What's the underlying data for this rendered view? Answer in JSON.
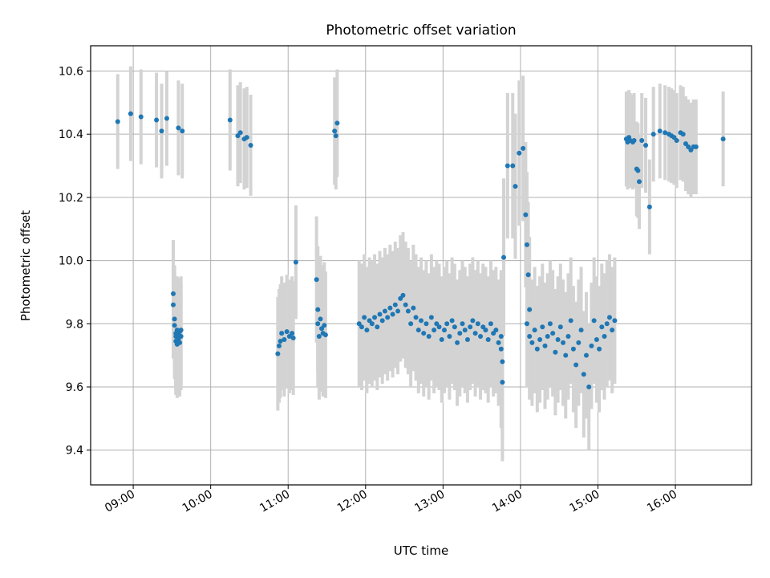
{
  "chart_data": {
    "type": "scatter",
    "title": "Photometric offset variation",
    "xlabel": "UTC time",
    "ylabel": "Photometric offset",
    "xlim": [
      "08:27",
      "16:59"
    ],
    "ylim": [
      9.29,
      10.68
    ],
    "x_ticks": [
      "09:00",
      "10:00",
      "11:00",
      "12:00",
      "13:00",
      "14:00",
      "15:00",
      "16:00"
    ],
    "y_ticks": [
      "9.4",
      "9.6",
      "9.8",
      "10.0",
      "10.2",
      "10.4",
      "10.6"
    ],
    "grid": true,
    "colors": {
      "points": "#1f77b4",
      "errorbars": "#d3d3d3",
      "grid": "#b0b0b0"
    },
    "groups": [
      {
        "t": [
          "08:48",
          "08:58",
          "09:06",
          "09:18",
          "09:22",
          "09:26",
          "09:35",
          "09:38"
        ],
        "y": [
          10.44,
          10.465,
          10.455,
          10.445,
          10.41,
          10.45,
          10.42,
          10.41
        ],
        "err": 0.15
      },
      {
        "t": [
          "09:31",
          "09:31",
          "09:32",
          "09:32",
          "09:33",
          "09:33",
          "09:33",
          "09:34",
          "09:34",
          "09:35",
          "09:35",
          "09:36",
          "09:36",
          "09:37",
          "09:37"
        ],
        "y": [
          9.895,
          9.86,
          9.815,
          9.795,
          9.77,
          9.76,
          9.745,
          9.78,
          9.735,
          9.765,
          9.75,
          9.775,
          9.74,
          9.76,
          9.78
        ],
        "err": 0.17
      },
      {
        "t": [
          "10:15",
          "10:21",
          "10:23",
          "10:26",
          "10:28",
          "10:31"
        ],
        "y": [
          10.445,
          10.395,
          10.405,
          10.385,
          10.39,
          10.365
        ],
        "err": 0.16
      },
      {
        "t": [
          "10:52",
          "10:53",
          "10:54",
          "10:55",
          "10:57",
          "10:59",
          "11:01",
          "11:03",
          "11:04",
          "11:06"
        ],
        "y": [
          9.705,
          9.73,
          9.745,
          9.77,
          9.75,
          9.775,
          9.76,
          9.77,
          9.755,
          9.995
        ],
        "err": 0.18
      },
      {
        "t": [
          "11:22",
          "11:23",
          "11:23",
          "11:24",
          "11:25",
          "11:26",
          "11:27",
          "11:28",
          "11:29"
        ],
        "y": [
          9.94,
          9.845,
          9.8,
          9.76,
          9.815,
          9.785,
          9.77,
          9.795,
          9.765
        ],
        "err": 0.2
      },
      {
        "t": [
          "11:36",
          "11:37",
          "11:38"
        ],
        "y": [
          10.41,
          10.395,
          10.435
        ],
        "err": 0.17
      },
      {
        "t": [
          "11:55",
          "11:57",
          "11:59",
          "12:01",
          "12:03",
          "12:05",
          "12:07",
          "12:09",
          "12:11",
          "12:13",
          "12:15",
          "12:17",
          "12:19",
          "12:21",
          "12:23",
          "12:25",
          "12:27",
          "12:29",
          "12:31",
          "12:33",
          "12:35",
          "12:37",
          "12:39",
          "12:41",
          "12:43",
          "12:45",
          "12:47",
          "12:49",
          "12:51",
          "12:53",
          "12:55",
          "12:57",
          "12:59",
          "13:01",
          "13:03",
          "13:05",
          "13:07",
          "13:09",
          "13:11",
          "13:13",
          "13:15",
          "13:17",
          "13:19",
          "13:21",
          "13:23",
          "13:25",
          "13:27",
          "13:29",
          "13:31",
          "13:33",
          "13:35",
          "13:37",
          "13:39",
          "13:41",
          "13:43",
          "13:45"
        ],
        "y": [
          9.8,
          9.79,
          9.82,
          9.78,
          9.81,
          9.8,
          9.82,
          9.79,
          9.83,
          9.81,
          9.84,
          9.82,
          9.85,
          9.83,
          9.86,
          9.84,
          9.88,
          9.89,
          9.86,
          9.84,
          9.8,
          9.85,
          9.82,
          9.78,
          9.81,
          9.77,
          9.8,
          9.76,
          9.82,
          9.78,
          9.8,
          9.79,
          9.75,
          9.78,
          9.8,
          9.76,
          9.81,
          9.79,
          9.74,
          9.77,
          9.8,
          9.78,
          9.75,
          9.79,
          9.81,
          9.77,
          9.8,
          9.76,
          9.79,
          9.78,
          9.75,
          9.8,
          9.77,
          9.78,
          9.74,
          9.76
        ],
        "err": 0.2
      },
      {
        "t": [
          "13:45",
          "13:46",
          "13:46",
          "13:47"
        ],
        "y": [
          9.72,
          9.68,
          9.615,
          10.01
        ],
        "err": 0.25
      },
      {
        "t": [
          "13:50",
          "13:54",
          "13:56",
          "13:59",
          "14:02",
          "14:04",
          "14:05",
          "14:06",
          "14:07"
        ],
        "y": [
          10.3,
          10.3,
          10.235,
          10.34,
          10.355,
          10.145,
          10.05,
          9.955,
          9.845
        ],
        "err": 0.23
      },
      {
        "t": [
          "14:05",
          "14:07",
          "14:09",
          "14:11",
          "14:13",
          "14:15",
          "14:17",
          "14:19",
          "14:21",
          "14:23",
          "14:25",
          "14:27",
          "14:29",
          "14:31",
          "14:33",
          "14:35",
          "14:37",
          "14:39",
          "14:41",
          "14:43",
          "14:45",
          "14:47",
          "14:49",
          "14:51",
          "14:53",
          "14:55",
          "14:57",
          "14:59",
          "15:01",
          "15:03",
          "15:05",
          "15:07",
          "15:09",
          "15:11",
          "15:13"
        ],
        "y": [
          9.8,
          9.76,
          9.74,
          9.78,
          9.72,
          9.75,
          9.79,
          9.73,
          9.76,
          9.8,
          9.77,
          9.71,
          9.75,
          9.79,
          9.74,
          9.7,
          9.76,
          9.81,
          9.72,
          9.67,
          9.74,
          9.78,
          9.64,
          9.7,
          9.6,
          9.73,
          9.81,
          9.75,
          9.72,
          9.79,
          9.76,
          9.8,
          9.82,
          9.78,
          9.81
        ],
        "err": 0.2
      },
      {
        "t": [
          "15:22",
          "15:23",
          "15:24",
          "15:25",
          "15:27",
          "15:28",
          "15:30",
          "15:31",
          "15:32",
          "15:34",
          "15:37",
          "15:40",
          "15:43",
          "15:48",
          "15:52",
          "15:55",
          "15:57",
          "15:59",
          "16:01",
          "16:04",
          "16:06",
          "16:08",
          "16:10",
          "16:12",
          "16:14",
          "16:16",
          "16:37"
        ],
        "y": [
          10.385,
          10.375,
          10.39,
          10.38,
          10.375,
          10.38,
          10.29,
          10.285,
          10.25,
          10.38,
          10.365,
          10.17,
          10.4,
          10.41,
          10.405,
          10.4,
          10.395,
          10.39,
          10.38,
          10.405,
          10.4,
          10.37,
          10.36,
          10.35,
          10.36,
          10.36,
          10.385
        ],
        "err": 0.15
      }
    ]
  }
}
